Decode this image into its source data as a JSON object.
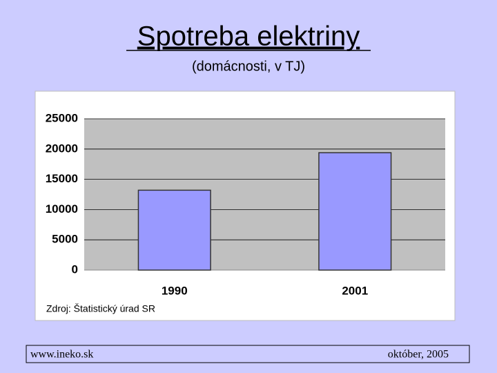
{
  "chart_data": {
    "type": "bar",
    "title": "Spotreba elektriny",
    "subtitle": "(domácnosti, v TJ)",
    "categories": [
      "1990",
      "2001"
    ],
    "values": [
      13200,
      19400
    ],
    "color": "#9999ff",
    "ylim": [
      0,
      25000
    ],
    "yticks": [
      0,
      5000,
      10000,
      15000,
      20000,
      25000
    ],
    "grid": true,
    "source": "Zdroj: Štatistický úrad SR"
  },
  "footer": {
    "left": "www.ineko.sk",
    "right": "október, 2005"
  }
}
